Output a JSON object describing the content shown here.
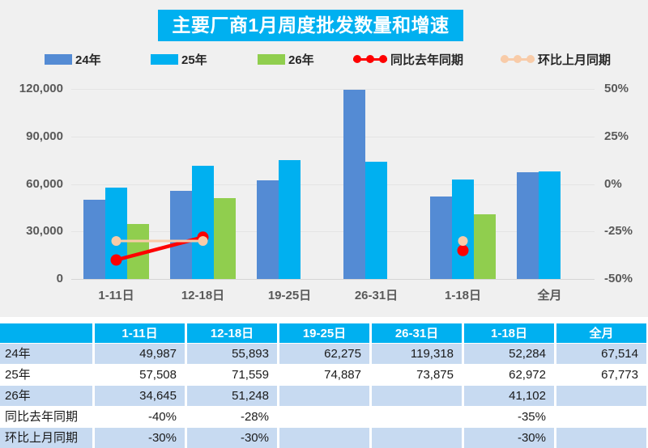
{
  "title": "主要厂商1月周度批发数量和增速",
  "colors": {
    "accent_cyan": "#00b0f0",
    "bar_blue": "#548bd4",
    "bar_cyan": "#00b0f0",
    "bar_green": "#90ce4e",
    "line_red": "#fe0000",
    "line_peach": "#f8cba8",
    "row_alt_blue": "#c7daf1",
    "chart_bg": "#f0f0f0",
    "axis_text": "#595959"
  },
  "legend": {
    "items": [
      {
        "label": "24年",
        "type": "bar",
        "color": "#548bd4"
      },
      {
        "label": "25年",
        "type": "bar",
        "color": "#00b0f0"
      },
      {
        "label": "26年",
        "type": "bar",
        "color": "#90ce4e"
      },
      {
        "label": "同比去年同期",
        "type": "line",
        "color": "#fe0000"
      },
      {
        "label": "环比上月同期",
        "type": "line",
        "color": "#f8cba8"
      }
    ]
  },
  "chart_data": {
    "type": "bar+line",
    "title": "主要厂商1月周度批发数量和增速",
    "categories": [
      "1-11日",
      "12-18日",
      "19-25日",
      "26-31日",
      "1-18日",
      "全月"
    ],
    "bar_series": [
      {
        "name": "24年",
        "color": "#548bd4",
        "values": [
          49987,
          55893,
          62275,
          119318,
          52284,
          67514
        ]
      },
      {
        "name": "25年",
        "color": "#00b0f0",
        "values": [
          57508,
          71559,
          74887,
          73875,
          62972,
          67773
        ]
      },
      {
        "name": "26年",
        "color": "#90ce4e",
        "values": [
          34645,
          51248,
          null,
          null,
          41102,
          null
        ]
      }
    ],
    "line_series": [
      {
        "name": "同比去年同期",
        "color": "#fe0000",
        "width": 4.5,
        "dot_r": 7,
        "values_pct": [
          -40,
          -28,
          null,
          null,
          -35,
          null
        ]
      },
      {
        "name": "环比上月同期",
        "color": "#f8cba8",
        "width": 3,
        "dot_r": 6,
        "values_pct": [
          -30,
          -30,
          null,
          null,
          -30,
          null
        ]
      }
    ],
    "left_axis": {
      "label_ticks": [
        "120,000",
        "90,000",
        "60,000",
        "30,000",
        "0"
      ],
      "min": 0,
      "max": 120000
    },
    "right_axis": {
      "label_ticks": [
        "50%",
        "25%",
        "0%",
        "-25%",
        "-50%"
      ],
      "min": -50,
      "max": 50
    },
    "grid": true,
    "legend_position": "top"
  },
  "table": {
    "header": [
      "",
      "1-11日",
      "12-18日",
      "19-25日",
      "26-31日",
      "1-18日",
      "全月"
    ],
    "rows": [
      {
        "label": "24年",
        "cells": [
          "49,987",
          "55,893",
          "62,275",
          "119,318",
          "52,284",
          "67,514"
        ]
      },
      {
        "label": "25年",
        "cells": [
          "57,508",
          "71,559",
          "74,887",
          "73,875",
          "62,972",
          "67,773"
        ]
      },
      {
        "label": "26年",
        "cells": [
          "34,645",
          "51,248",
          "",
          "",
          "41,102",
          ""
        ]
      },
      {
        "label": "同比去年同期",
        "cells": [
          "-40%",
          "-28%",
          "",
          "",
          "-35%",
          ""
        ]
      },
      {
        "label": "环比上月同期",
        "cells": [
          "-30%",
          "-30%",
          "",
          "",
          "-30%",
          ""
        ]
      }
    ]
  }
}
